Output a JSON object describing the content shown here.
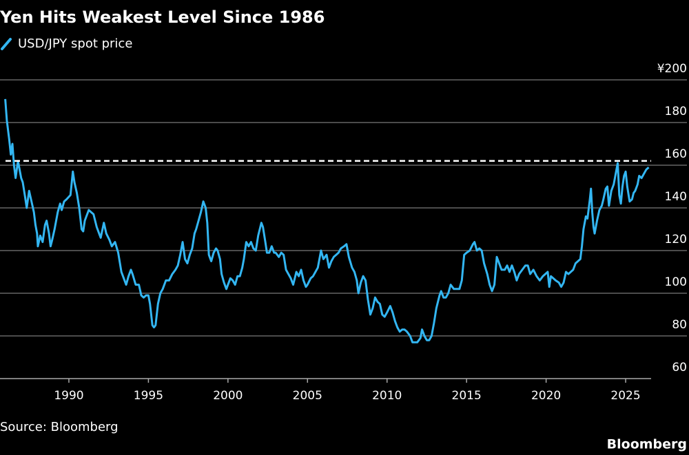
{
  "chart_data": {
    "type": "line",
    "title": "Yen Hits Weakest Level Since 1986",
    "source": "Source: Bloomberg",
    "brand": "Bloomberg",
    "xlim": [
      1985.67,
      2026.6
    ],
    "xticks": [
      1990,
      1995,
      2000,
      2005,
      2010,
      2015,
      2020,
      2025
    ],
    "ylim": [
      60,
      200
    ],
    "yticks": [
      {
        "value": 200,
        "label": "¥200"
      },
      180,
      160,
      140,
      120,
      100,
      80,
      60
    ],
    "grid": true,
    "reference_line": 162,
    "x": [
      1986.0,
      1986.1,
      1986.25,
      1986.35,
      1986.45,
      1986.55,
      1986.65,
      1986.8,
      1987.0,
      1987.1,
      1987.25,
      1987.35,
      1987.5,
      1987.65,
      1987.8,
      1987.9,
      1988.0,
      1988.05,
      1988.2,
      1988.35,
      1988.5,
      1988.6,
      1988.75,
      1988.85,
      1988.95,
      1989.1,
      1989.3,
      1989.45,
      1989.55,
      1989.7,
      1989.85,
      1990.1,
      1990.25,
      1990.35,
      1990.5,
      1990.65,
      1990.8,
      1990.9,
      1991.0,
      1991.1,
      1991.25,
      1991.4,
      1991.55,
      1991.75,
      1991.9,
      1992.0,
      1992.2,
      1992.35,
      1992.55,
      1992.7,
      1992.9,
      1993.1,
      1993.3,
      1993.45,
      1993.6,
      1993.75,
      1993.9,
      1994.0,
      1994.2,
      1994.4,
      1994.55,
      1994.7,
      1994.85,
      1995.0,
      1995.1,
      1995.25,
      1995.35,
      1995.45,
      1995.6,
      1995.75,
      1995.9,
      1996.1,
      1996.3,
      1996.5,
      1996.7,
      1996.85,
      1997.0,
      1997.15,
      1997.3,
      1997.45,
      1997.6,
      1997.75,
      1997.9,
      1998.0,
      1998.15,
      1998.3,
      1998.45,
      1998.6,
      1998.7,
      1998.8,
      1998.95,
      1999.1,
      1999.25,
      1999.35,
      1999.5,
      1999.6,
      1999.75,
      1999.9,
      2000.0,
      2000.15,
      2000.3,
      2000.45,
      2000.6,
      2000.75,
      2000.9,
      2001.0,
      2001.15,
      2001.3,
      2001.45,
      2001.6,
      2001.75,
      2001.9,
      2002.1,
      2002.2,
      2002.35,
      2002.45,
      2002.6,
      2002.75,
      2002.9,
      2003.0,
      2003.2,
      2003.35,
      2003.5,
      2003.65,
      2003.8,
      2003.95,
      2004.1,
      2004.3,
      2004.45,
      2004.6,
      2004.75,
      2004.9,
      2005.0,
      2005.2,
      2005.35,
      2005.5,
      2005.65,
      2005.85,
      2006.0,
      2006.2,
      2006.35,
      2006.5,
      2006.65,
      2006.8,
      2006.95,
      2007.1,
      2007.3,
      2007.45,
      2007.6,
      2007.8,
      2007.95,
      2008.1,
      2008.2,
      2008.35,
      2008.5,
      2008.65,
      2008.8,
      2008.95,
      2009.1,
      2009.25,
      2009.4,
      2009.55,
      2009.7,
      2009.85,
      2010.0,
      2010.2,
      2010.35,
      2010.5,
      2010.65,
      2010.8,
      2010.95,
      2011.1,
      2011.25,
      2011.45,
      2011.6,
      2011.75,
      2011.9,
      2012.1,
      2012.2,
      2012.35,
      2012.5,
      2012.65,
      2012.8,
      2012.95,
      2013.1,
      2013.3,
      2013.4,
      2013.55,
      2013.7,
      2013.85,
      2014.0,
      2014.2,
      2014.4,
      2014.55,
      2014.7,
      2014.85,
      2015.0,
      2015.2,
      2015.4,
      2015.5,
      2015.65,
      2015.8,
      2015.95,
      2016.1,
      2016.3,
      2016.45,
      2016.6,
      2016.75,
      2016.9,
      2017.0,
      2017.2,
      2017.4,
      2017.55,
      2017.7,
      2017.85,
      2018.0,
      2018.15,
      2018.3,
      2018.5,
      2018.7,
      2018.85,
      2019.0,
      2019.2,
      2019.4,
      2019.6,
      2019.8,
      2019.95,
      2020.1,
      2020.2,
      2020.3,
      2020.45,
      2020.6,
      2020.8,
      2020.95,
      2021.1,
      2021.25,
      2021.4,
      2021.55,
      2021.7,
      2021.85,
      2022.0,
      2022.15,
      2022.25,
      2022.35,
      2022.5,
      2022.6,
      2022.75,
      2022.82,
      2022.9,
      2022.98,
      2023.05,
      2023.2,
      2023.35,
      2023.5,
      2023.6,
      2023.75,
      2023.85,
      2023.95,
      2024.1,
      2024.25,
      2024.4,
      2024.5,
      2024.6,
      2024.7,
      2024.8,
      2024.9,
      2025.0,
      2025.1,
      2025.25,
      2025.4,
      2025.5,
      2025.6,
      2025.75,
      2025.85,
      2026.0,
      2026.15,
      2026.3,
      2026.45
    ],
    "series": [
      {
        "name": "USD/JPY spot price",
        "color": "#33b6f2",
        "values": [
          191,
          181,
          172,
          165,
          170,
          160,
          154,
          162,
          154,
          152,
          145,
          140,
          148,
          143,
          138,
          132,
          128,
          122,
          127,
          124,
          132,
          134,
          128,
          122,
          125,
          130,
          138,
          142,
          139,
          143,
          144,
          146,
          157,
          152,
          147,
          140,
          130,
          129,
          134,
          136,
          139,
          138,
          137,
          131,
          128,
          126,
          133,
          128,
          125,
          122,
          124,
          119,
          110,
          107,
          104,
          108,
          111,
          109,
          104,
          104,
          99,
          98,
          99,
          99,
          95,
          85,
          84,
          85,
          95,
          100,
          102,
          106,
          106,
          109,
          111,
          113,
          118,
          124,
          116,
          114,
          118,
          121,
          128,
          130,
          134,
          138,
          143,
          140,
          133,
          118,
          115,
          119,
          121,
          120,
          116,
          109,
          105,
          102,
          104,
          107,
          106,
          104,
          108,
          108,
          112,
          116,
          124,
          122,
          124,
          121,
          120,
          127,
          133,
          131,
          124,
          119,
          119,
          122,
          119,
          119,
          117,
          119,
          118,
          111,
          109,
          107,
          104,
          110,
          108,
          111,
          106,
          103,
          104,
          107,
          108,
          110,
          112,
          120,
          116,
          118,
          112,
          115,
          117,
          118,
          119,
          121,
          122,
          123,
          117,
          112,
          110,
          106,
          100,
          105,
          108,
          106,
          97,
          90,
          93,
          98,
          96,
          95,
          90,
          89,
          91,
          94,
          91,
          87,
          84,
          82,
          83,
          83,
          82,
          80,
          77,
          77,
          77,
          79,
          83,
          80,
          78,
          78,
          80,
          86,
          93,
          99,
          101,
          98,
          98,
          100,
          104,
          102,
          102,
          102,
          106,
          118,
          119,
          120,
          123,
          124,
          120,
          121,
          120,
          114,
          109,
          104,
          101,
          104,
          117,
          115,
          111,
          111,
          113,
          110,
          113,
          110,
          106,
          109,
          111,
          113,
          113,
          109,
          111,
          108,
          106,
          108,
          109,
          110,
          103,
          108,
          107,
          106,
          105,
          103,
          105,
          110,
          109,
          110,
          111,
          114,
          115,
          116,
          122,
          130,
          136,
          135,
          144,
          149,
          138,
          131,
          128,
          134,
          139,
          141,
          144,
          149,
          150,
          141,
          148,
          151,
          157,
          161,
          146,
          142,
          150,
          155,
          157,
          150,
          143,
          144,
          147,
          148,
          151,
          155,
          154,
          156,
          158,
          159
        ]
      }
    ]
  }
}
